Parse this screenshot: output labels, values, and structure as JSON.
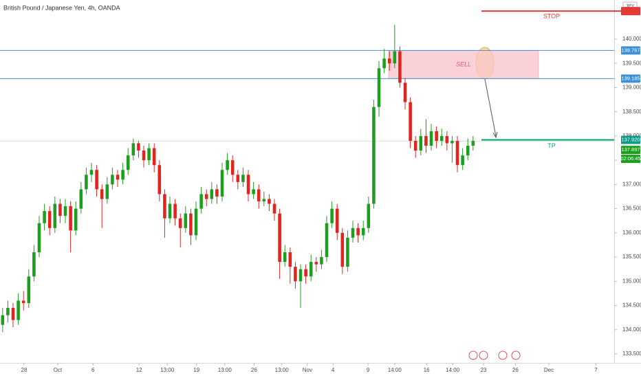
{
  "chart_data": {
    "type": "candlestick",
    "title": "British Pound / Japanese Yen, 4h, OANDA",
    "currency": "JPY",
    "up_color": "#1e9e1e",
    "down_color": "#e0251f",
    "open": [
      134.1,
      134.3,
      134.45,
      134.2,
      134.6,
      134.55,
      135.1,
      135.6,
      136.2,
      136.45,
      136.1,
      136.6,
      136.35,
      136.55,
      136.05,
      136.5,
      136.9,
      137.2,
      137.3,
      136.9,
      136.7,
      137.0,
      137.2,
      137.1,
      137.3,
      137.6,
      137.85,
      137.7,
      137.5,
      137.75,
      137.4,
      136.8,
      136.3,
      136.6,
      136.3,
      136.1,
      136.4,
      135.95,
      136.5,
      136.8,
      136.7,
      136.9,
      136.75,
      137.3,
      137.5,
      137.2,
      137.05,
      137.2,
      136.8,
      136.9,
      136.65,
      136.7,
      136.6,
      136.4,
      135.4,
      135.6,
      135.3,
      135.0,
      135.25,
      135.1,
      135.4,
      135.35,
      135.5,
      136.2,
      136.5,
      136.0,
      135.3,
      135.9,
      136.1,
      135.95,
      136.1,
      136.6,
      138.6,
      139.4,
      139.6,
      139.5,
      139.75,
      139.1,
      138.7,
      137.9,
      137.7,
      138.0,
      137.8,
      138.1,
      137.9,
      138.0,
      137.85,
      137.9,
      137.4,
      137.6,
      137.8
    ],
    "high": [
      134.45,
      134.6,
      134.55,
      134.75,
      134.8,
      135.25,
      135.75,
      136.35,
      136.6,
      136.55,
      136.75,
      136.7,
      136.7,
      136.65,
      136.65,
      137.05,
      137.35,
      137.45,
      137.4,
      137.0,
      137.15,
      137.35,
      137.3,
      137.45,
      137.75,
      137.95,
      137.9,
      137.8,
      137.85,
      137.85,
      137.5,
      136.9,
      136.75,
      136.7,
      136.4,
      136.55,
      136.5,
      136.65,
      136.95,
      136.9,
      137.05,
      137.0,
      137.45,
      137.65,
      137.6,
      137.3,
      137.35,
      137.3,
      137.05,
      137.0,
      136.85,
      136.8,
      136.7,
      136.5,
      135.75,
      135.7,
      135.4,
      135.35,
      135.35,
      135.55,
      135.5,
      135.65,
      136.35,
      136.65,
      136.6,
      136.1,
      136.05,
      136.25,
      136.2,
      136.25,
      136.75,
      138.75,
      139.55,
      139.8,
      139.75,
      140.3,
      139.85,
      139.2,
      138.8,
      138.0,
      138.15,
      138.35,
      138.25,
      138.2,
      138.15,
      138.1,
      138.0,
      138.0,
      137.75,
      137.95,
      138.0
    ],
    "low": [
      133.95,
      134.15,
      134.05,
      134.1,
      134.4,
      134.45,
      135.0,
      135.5,
      136.05,
      135.95,
      136.0,
      136.2,
      136.2,
      135.6,
      135.95,
      136.4,
      136.8,
      137.05,
      136.75,
      136.1,
      136.6,
      136.9,
      136.95,
      137.0,
      137.2,
      137.5,
      137.55,
      137.35,
      137.4,
      137.25,
      136.65,
      135.9,
      136.2,
      136.15,
      135.7,
      136.0,
      135.75,
      135.85,
      136.4,
      136.55,
      136.6,
      136.6,
      136.65,
      137.2,
      137.05,
      136.9,
      136.95,
      136.65,
      136.7,
      136.5,
      136.55,
      136.45,
      136.25,
      135.05,
      135.3,
      134.95,
      134.85,
      134.45,
      134.95,
      135.0,
      135.2,
      135.25,
      135.4,
      136.1,
      135.85,
      135.15,
      135.2,
      135.8,
      135.8,
      135.85,
      136.0,
      136.5,
      138.4,
      139.3,
      139.35,
      139.4,
      139.0,
      138.55,
      137.75,
      137.55,
      137.6,
      137.65,
      137.7,
      137.75,
      137.8,
      137.7,
      137.45,
      137.25,
      137.3,
      137.5,
      137.7
    ],
    "close": [
      134.3,
      134.45,
      134.2,
      134.6,
      134.55,
      135.1,
      135.6,
      136.2,
      136.45,
      136.1,
      136.6,
      136.35,
      136.55,
      136.05,
      136.5,
      136.9,
      137.2,
      137.3,
      136.9,
      136.7,
      137.0,
      137.2,
      137.1,
      137.3,
      137.6,
      137.85,
      137.7,
      137.5,
      137.75,
      137.4,
      136.8,
      136.3,
      136.6,
      136.3,
      136.1,
      136.4,
      135.95,
      136.5,
      136.8,
      136.7,
      136.9,
      136.75,
      137.3,
      137.5,
      137.2,
      137.05,
      137.2,
      136.8,
      136.9,
      136.65,
      136.7,
      136.6,
      136.4,
      135.4,
      135.6,
      135.3,
      135.0,
      135.25,
      135.1,
      135.4,
      135.35,
      135.5,
      136.2,
      136.5,
      136.0,
      135.3,
      135.9,
      136.1,
      135.95,
      136.1,
      136.6,
      138.6,
      139.4,
      139.6,
      139.5,
      139.75,
      139.1,
      138.7,
      137.9,
      137.7,
      138.0,
      137.8,
      138.1,
      137.9,
      138.0,
      137.85,
      137.9,
      137.4,
      137.6,
      137.8,
      137.9
    ],
    "xlim": [
      0,
      117.1
    ],
    "xticks": [
      {
        "value": 4.6,
        "label": "28"
      },
      {
        "value": 11.05,
        "label": "Oct"
      },
      {
        "value": 17.8,
        "label": "6"
      },
      {
        "value": 26.6,
        "label": "12"
      },
      {
        "value": 32,
        "label": "13:00"
      },
      {
        "value": 37.6,
        "label": "19"
      },
      {
        "value": 43,
        "label": "13:00"
      },
      {
        "value": 48.6,
        "label": "26"
      },
      {
        "value": 53.9,
        "label": "13:00"
      },
      {
        "value": 58.8,
        "label": "Nov"
      },
      {
        "value": 63.7,
        "label": "4"
      },
      {
        "value": 70.4,
        "label": "9"
      },
      {
        "value": 75.5,
        "label": "14:00"
      },
      {
        "value": 81.6,
        "label": "16"
      },
      {
        "value": 86.6,
        "label": "14:00"
      },
      {
        "value": 92.5,
        "label": "23"
      },
      {
        "value": 98.6,
        "label": "26"
      },
      {
        "value": 105,
        "label": "Dec"
      },
      {
        "value": 114,
        "label": "7"
      }
    ],
    "ylim": [
      133.315,
      140.809
    ],
    "yticks": [
      {
        "value": 133.5,
        "label": "133.500"
      },
      {
        "value": 134,
        "label": "134.000"
      },
      {
        "value": 134.5,
        "label": "134.500"
      },
      {
        "value": 135,
        "label": "135.000"
      },
      {
        "value": 135.5,
        "label": "135.500"
      },
      {
        "value": 136,
        "label": "136.000"
      },
      {
        "value": 136.5,
        "label": "136.500"
      },
      {
        "value": 137,
        "label": "137.000"
      },
      {
        "value": 137.5,
        "label": "137.500"
      },
      {
        "value": 138,
        "label": "138.000"
      },
      {
        "value": 138.5,
        "label": "138.500"
      },
      {
        "value": 139,
        "label": "139.000"
      },
      {
        "value": 139.5,
        "label": "139.500"
      },
      {
        "value": 140,
        "label": "140.000"
      }
    ],
    "levels": [
      {
        "value": 139.767,
        "label": "139.767",
        "color": "#3d8fd8"
      },
      {
        "value": 139.185,
        "label": "139.185",
        "color": "#3d8fd8"
      }
    ],
    "sell_zone": {
      "label": "SELL",
      "low": 139.185,
      "high": 139.767,
      "color": "#f7c5cc"
    },
    "stop": {
      "label": "STOP",
      "value": 140.58,
      "color": "#e53935"
    },
    "take_profit": {
      "text": "TP",
      "value": 137.92,
      "label": "137.920",
      "color": "#0b9a86"
    },
    "last_price": {
      "value": 137.897,
      "label": "137.897",
      "countdown": "02:06:45",
      "color": "#1e9e1e"
    }
  }
}
